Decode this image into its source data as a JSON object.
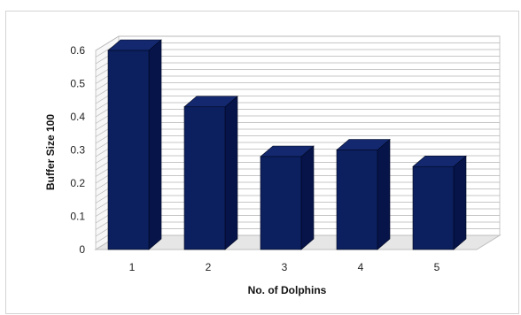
{
  "chart_data": {
    "type": "bar",
    "title": "",
    "xlabel": "No. of Dolphins",
    "ylabel": "Buffer Size 100",
    "categories": [
      "1",
      "2",
      "3",
      "4",
      "5"
    ],
    "values": [
      0.6,
      0.43,
      0.28,
      0.3,
      0.25
    ],
    "ylim": [
      0,
      0.6
    ],
    "yticks": [
      "0",
      "0.1",
      "0.2",
      "0.3",
      "0.4",
      "0.5",
      "0.6"
    ],
    "grid": true,
    "legend": "none",
    "style": "3d-column",
    "bar_color": "#0c1f5e",
    "bar_side_color": "#07144a",
    "bar_top_color": "#13286e",
    "grid_color": "#b5b5b5",
    "wall_color": "#ffffff",
    "floor_color": "#e6e6e6"
  }
}
